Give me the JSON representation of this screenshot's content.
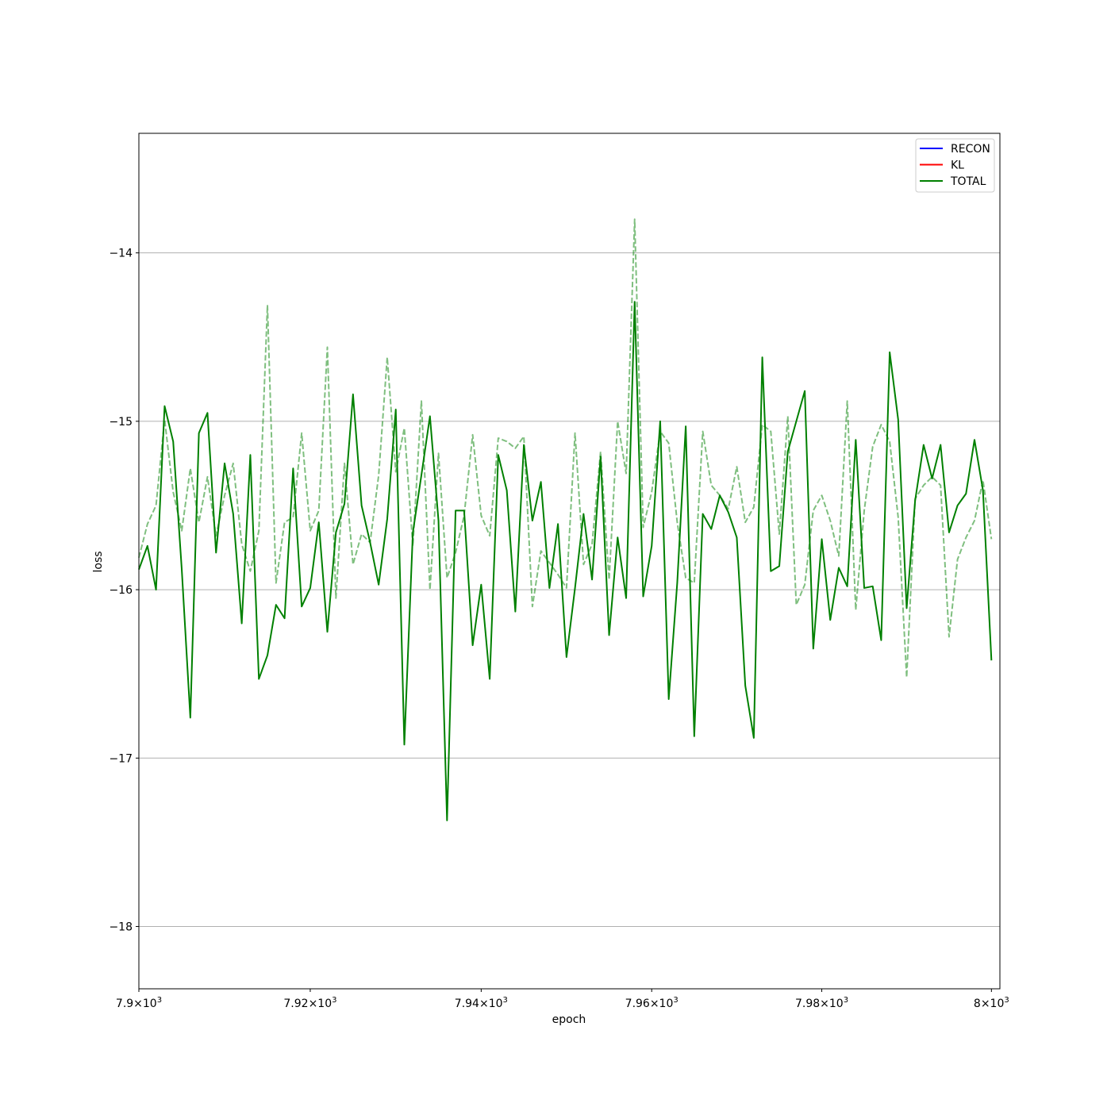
{
  "chart_data": {
    "type": "line",
    "title": "",
    "xlabel": "epoch",
    "ylabel": "loss",
    "xscale": "log",
    "xlim": [
      7900,
      8001
    ],
    "ylim": [
      -18.37,
      -13.29
    ],
    "grid": "y-major",
    "legend_position": "upper-right",
    "x_ticks": [
      7900,
      7920,
      7940,
      7960,
      7980,
      8000
    ],
    "x_tick_mantissas": [
      "7.9",
      "7.92",
      "7.94",
      "7.96",
      "7.98",
      "8"
    ],
    "x_tick_base": "10",
    "x_tick_exponent": "3",
    "y_ticks": [
      -18,
      -17,
      -16,
      -15,
      -14
    ],
    "y_tick_labels": [
      "−18",
      "−17",
      "−16",
      "−15",
      "−14"
    ],
    "legend": [
      {
        "label": "RECON",
        "color": "#0000ff"
      },
      {
        "label": "KL",
        "color": "#ff0000"
      },
      {
        "label": "TOTAL",
        "color": "#008000"
      }
    ],
    "x_start": 7900,
    "x_step": 1,
    "series": [
      {
        "name": "TOTAL",
        "color": "#008000",
        "style": "solid",
        "values": [
          -15.88,
          -15.74,
          -16.0,
          -14.91,
          -15.12,
          -15.88,
          -16.76,
          -15.07,
          -14.95,
          -15.78,
          -15.25,
          -15.55,
          -16.2,
          -15.2,
          -16.53,
          -16.39,
          -16.09,
          -16.17,
          -15.28,
          -16.1,
          -15.99,
          -15.6,
          -16.25,
          -15.66,
          -15.49,
          -14.84,
          -15.5,
          -15.72,
          -15.97,
          -15.58,
          -14.93,
          -16.92,
          -15.66,
          -15.32,
          -14.97,
          -15.59,
          -17.37,
          -15.53,
          -15.53,
          -16.33,
          -15.97,
          -16.53,
          -15.2,
          -15.41,
          -16.13,
          -15.14,
          -15.59,
          -15.36,
          -15.99,
          -15.61,
          -16.4,
          -15.99,
          -15.55,
          -15.94,
          -15.21,
          -16.27,
          -15.69,
          -16.05,
          -14.29,
          -16.04,
          -15.74,
          -15.0,
          -16.65,
          -15.96,
          -15.03,
          -16.87,
          -15.55,
          -15.64,
          -15.44,
          -15.54,
          -15.69,
          -16.57,
          -16.88,
          -14.62,
          -15.89,
          -15.86,
          -15.18,
          -15.0,
          -14.82,
          -16.35,
          -15.7,
          -16.18,
          -15.87,
          -15.98,
          -15.11,
          -15.99,
          -15.98,
          -16.3,
          -14.59,
          -14.99,
          -16.11,
          -15.47,
          -15.14,
          -15.34,
          -15.14,
          -15.66,
          -15.5,
          -15.43,
          -15.11,
          -15.41,
          -16.42
        ]
      },
      {
        "name": "",
        "color": "#008000",
        "style": "dashed",
        "opacity": 0.5,
        "values": [
          -15.81,
          -15.61,
          -15.5,
          -14.99,
          -15.42,
          -15.65,
          -15.28,
          -15.6,
          -15.33,
          -15.68,
          -15.44,
          -15.25,
          -15.73,
          -15.89,
          -15.65,
          -14.31,
          -15.96,
          -15.6,
          -15.57,
          -15.07,
          -15.65,
          -15.53,
          -14.56,
          -16.05,
          -15.25,
          -15.85,
          -15.67,
          -15.72,
          -15.32,
          -14.62,
          -15.3,
          -15.04,
          -15.74,
          -14.88,
          -16.0,
          -15.19,
          -15.93,
          -15.78,
          -15.56,
          -15.08,
          -15.56,
          -15.68,
          -15.1,
          -15.12,
          -15.16,
          -15.09,
          -16.1,
          -15.77,
          -15.84,
          -15.91,
          -15.99,
          -15.07,
          -15.85,
          -15.73,
          -15.18,
          -15.94,
          -15.0,
          -15.31,
          -13.8,
          -15.63,
          -15.42,
          -15.06,
          -15.13,
          -15.6,
          -15.93,
          -15.96,
          -15.06,
          -15.38,
          -15.44,
          -15.52,
          -15.27,
          -15.6,
          -15.51,
          -15.02,
          -15.06,
          -15.67,
          -14.97,
          -16.09,
          -15.97,
          -15.53,
          -15.44,
          -15.59,
          -15.8,
          -14.88,
          -16.12,
          -15.53,
          -15.15,
          -15.02,
          -15.12,
          -15.57,
          -16.52,
          -15.46,
          -15.38,
          -15.33,
          -15.38,
          -16.28,
          -15.82,
          -15.69,
          -15.59,
          -15.35,
          -15.7
        ]
      },
      {
        "name": "RECON",
        "color": "#0000ff",
        "style": "solid",
        "values": []
      },
      {
        "name": "KL",
        "color": "#ff0000",
        "style": "solid",
        "values": []
      }
    ]
  }
}
